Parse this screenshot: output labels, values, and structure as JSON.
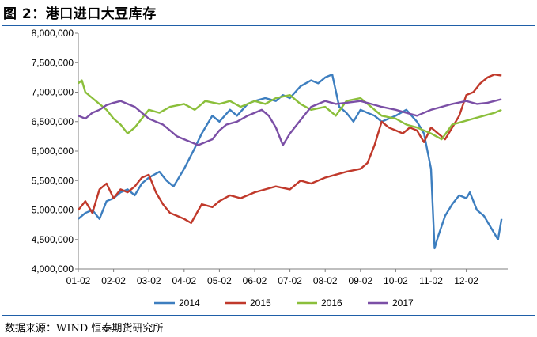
{
  "header": {
    "title": "图 2：港口进口大豆库存"
  },
  "footer": {
    "source": "数据来源：WIND 恒泰期货研究所"
  },
  "chart_data": {
    "type": "line",
    "title": "图 2：港口进口大豆库存",
    "xlabel": "",
    "ylabel": "",
    "x_ticks": [
      "01-02",
      "02-02",
      "03-02",
      "04-02",
      "05-02",
      "06-02",
      "07-02",
      "08-02",
      "09-02",
      "10-02",
      "11-02",
      "12-02"
    ],
    "ylim": [
      4000000,
      8000000
    ],
    "y_ticks": [
      4000000,
      4500000,
      5000000,
      5500000,
      6000000,
      6500000,
      7000000,
      7500000,
      8000000
    ],
    "y_tick_labels": [
      "4,000,000",
      "4,500,000",
      "5,000,000",
      "5,500,000",
      "6,000,000",
      "6,500,000",
      "7,000,000",
      "7,500,000",
      "8,000,000"
    ],
    "grid": false,
    "legend_position": "bottom",
    "x_unit": "months since Jan-02",
    "series": [
      {
        "name": "2014",
        "color": "#3d7ebf",
        "x": [
          0,
          0.2,
          0.4,
          0.6,
          0.8,
          1.0,
          1.2,
          1.4,
          1.6,
          1.8,
          2.0,
          2.3,
          2.5,
          2.7,
          3.0,
          3.3,
          3.5,
          3.8,
          4.0,
          4.3,
          4.5,
          4.8,
          5.0,
          5.3,
          5.6,
          5.8,
          6.0,
          6.3,
          6.6,
          6.8,
          7.0,
          7.2,
          7.4,
          7.6,
          7.8,
          8.0,
          8.2,
          8.4,
          8.6,
          8.8,
          9.0,
          9.3,
          9.6,
          9.8,
          10.0,
          10.1,
          10.2,
          10.4,
          10.6,
          10.8,
          11.0,
          11.1,
          11.3,
          11.5,
          11.7,
          11.9,
          12.0
        ],
        "values": [
          4850000,
          4950000,
          5000000,
          4850000,
          5150000,
          5200000,
          5300000,
          5350000,
          5250000,
          5450000,
          5550000,
          5650000,
          5500000,
          5400000,
          5700000,
          6050000,
          6300000,
          6600000,
          6500000,
          6700000,
          6600000,
          6800000,
          6850000,
          6900000,
          6850000,
          6950000,
          6900000,
          7100000,
          7200000,
          7150000,
          7250000,
          7300000,
          6750000,
          6650000,
          6500000,
          6700000,
          6650000,
          6600000,
          6500000,
          6550000,
          6600000,
          6700000,
          6500000,
          6300000,
          5700000,
          4350000,
          4550000,
          4900000,
          5100000,
          5250000,
          5200000,
          5300000,
          5000000,
          4900000,
          4700000,
          4500000,
          4850000
        ]
      },
      {
        "name": "2015",
        "color": "#c0392b",
        "x": [
          0,
          0.2,
          0.4,
          0.6,
          0.8,
          1.0,
          1.2,
          1.4,
          1.6,
          1.8,
          2.0,
          2.2,
          2.4,
          2.6,
          2.8,
          3.0,
          3.2,
          3.5,
          3.8,
          4.0,
          4.3,
          4.6,
          5.0,
          5.3,
          5.6,
          6.0,
          6.3,
          6.6,
          7.0,
          7.3,
          7.6,
          8.0,
          8.2,
          8.4,
          8.6,
          8.8,
          9.0,
          9.2,
          9.4,
          9.6,
          9.8,
          10.0,
          10.2,
          10.4,
          10.6,
          10.8,
          11.0,
          11.2,
          11.4,
          11.6,
          11.8,
          12.0
        ],
        "values": [
          5000000,
          5150000,
          4950000,
          5350000,
          5450000,
          5200000,
          5350000,
          5300000,
          5400000,
          5550000,
          5600000,
          5300000,
          5100000,
          4950000,
          4900000,
          4850000,
          4780000,
          5100000,
          5050000,
          5150000,
          5250000,
          5200000,
          5300000,
          5350000,
          5400000,
          5350000,
          5500000,
          5450000,
          5550000,
          5600000,
          5650000,
          5700000,
          5800000,
          6100000,
          6500000,
          6400000,
          6350000,
          6300000,
          6400000,
          6350000,
          6150000,
          6400000,
          6300000,
          6200000,
          6400000,
          6600000,
          6950000,
          7000000,
          7150000,
          7250000,
          7300000,
          7280000
        ]
      },
      {
        "name": "2016",
        "color": "#8bbf3b",
        "x": [
          0,
          0.1,
          0.2,
          0.4,
          0.6,
          0.8,
          1.0,
          1.2,
          1.4,
          1.6,
          1.8,
          2.0,
          2.3,
          2.6,
          3.0,
          3.3,
          3.6,
          4.0,
          4.3,
          4.6,
          5.0,
          5.3,
          5.6,
          6.0,
          6.3,
          6.6,
          7.0,
          7.3,
          7.6,
          8.0,
          8.3,
          8.6,
          9.0,
          9.3,
          9.6,
          10.0,
          10.3,
          10.6,
          10.9,
          11.2,
          11.5,
          11.8,
          12.0
        ],
        "values": [
          7150000,
          7200000,
          7000000,
          6900000,
          6800000,
          6700000,
          6550000,
          6450000,
          6300000,
          6400000,
          6550000,
          6700000,
          6650000,
          6750000,
          6800000,
          6700000,
          6850000,
          6800000,
          6850000,
          6750000,
          6850000,
          6800000,
          6900000,
          6950000,
          6800000,
          6700000,
          6750000,
          6600000,
          6850000,
          6900000,
          6750000,
          6600000,
          6550000,
          6450000,
          6400000,
          6300000,
          6200000,
          6450000,
          6500000,
          6550000,
          6600000,
          6650000,
          6700000
        ]
      },
      {
        "name": "2017",
        "color": "#7b4fa6",
        "x": [
          0,
          0.2,
          0.4,
          0.6,
          0.8,
          1.0,
          1.2,
          1.4,
          1.6,
          1.8,
          2.0,
          2.2,
          2.4,
          2.6,
          2.8,
          3.0,
          3.2,
          3.4,
          3.6,
          3.8,
          4.0,
          4.2,
          4.5,
          4.8,
          5.0,
          5.2,
          5.4,
          5.6,
          5.8,
          6.0,
          6.2,
          6.4,
          6.6,
          6.8,
          7.0,
          7.3,
          7.6,
          8.0,
          8.3,
          8.6,
          9.0,
          9.3,
          9.6,
          10.0,
          10.3,
          10.6,
          11.0,
          11.3,
          11.6,
          12.0
        ],
        "values": [
          6600000,
          6550000,
          6650000,
          6700000,
          6780000,
          6820000,
          6850000,
          6800000,
          6750000,
          6650000,
          6550000,
          6500000,
          6450000,
          6350000,
          6250000,
          6200000,
          6150000,
          6100000,
          6150000,
          6200000,
          6350000,
          6450000,
          6500000,
          6600000,
          6650000,
          6700000,
          6600000,
          6400000,
          6100000,
          6300000,
          6450000,
          6600000,
          6750000,
          6800000,
          6850000,
          6800000,
          6820000,
          6850000,
          6800000,
          6750000,
          6700000,
          6650000,
          6600000,
          6700000,
          6750000,
          6800000,
          6850000,
          6800000,
          6820000,
          6880000
        ]
      }
    ]
  }
}
